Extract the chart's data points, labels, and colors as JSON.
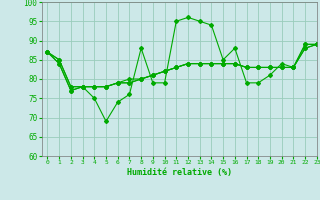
{
  "title": "",
  "xlabel": "Humidité relative (%)",
  "ylabel": "",
  "bg_color": "#cce8e8",
  "grid_color": "#99ccbb",
  "line_color": "#00aa00",
  "ylim": [
    60,
    100
  ],
  "xlim": [
    -0.5,
    23
  ],
  "yticks": [
    60,
    65,
    70,
    75,
    80,
    85,
    90,
    95,
    100
  ],
  "xticks": [
    0,
    1,
    2,
    3,
    4,
    5,
    6,
    7,
    8,
    9,
    10,
    11,
    12,
    13,
    14,
    15,
    16,
    17,
    18,
    19,
    20,
    21,
    22,
    23
  ],
  "series": [
    [
      87,
      84,
      77,
      78,
      75,
      69,
      74,
      76,
      88,
      79,
      79,
      95,
      96,
      95,
      94,
      85,
      88,
      79,
      79,
      81,
      84,
      83,
      89,
      89
    ],
    [
      87,
      84,
      77,
      78,
      78,
      78,
      79,
      80,
      80,
      81,
      82,
      83,
      84,
      84,
      84,
      84,
      84,
      83,
      83,
      83,
      83,
      83,
      89,
      89
    ],
    [
      87,
      85,
      78,
      78,
      78,
      78,
      79,
      79,
      80,
      81,
      82,
      83,
      84,
      84,
      84,
      84,
      84,
      83,
      83,
      83,
      83,
      83,
      88,
      89
    ],
    [
      87,
      85,
      78,
      78,
      78,
      78,
      79,
      79,
      80,
      81,
      82,
      83,
      84,
      84,
      84,
      84,
      84,
      83,
      83,
      83,
      83,
      83,
      88,
      89
    ]
  ]
}
